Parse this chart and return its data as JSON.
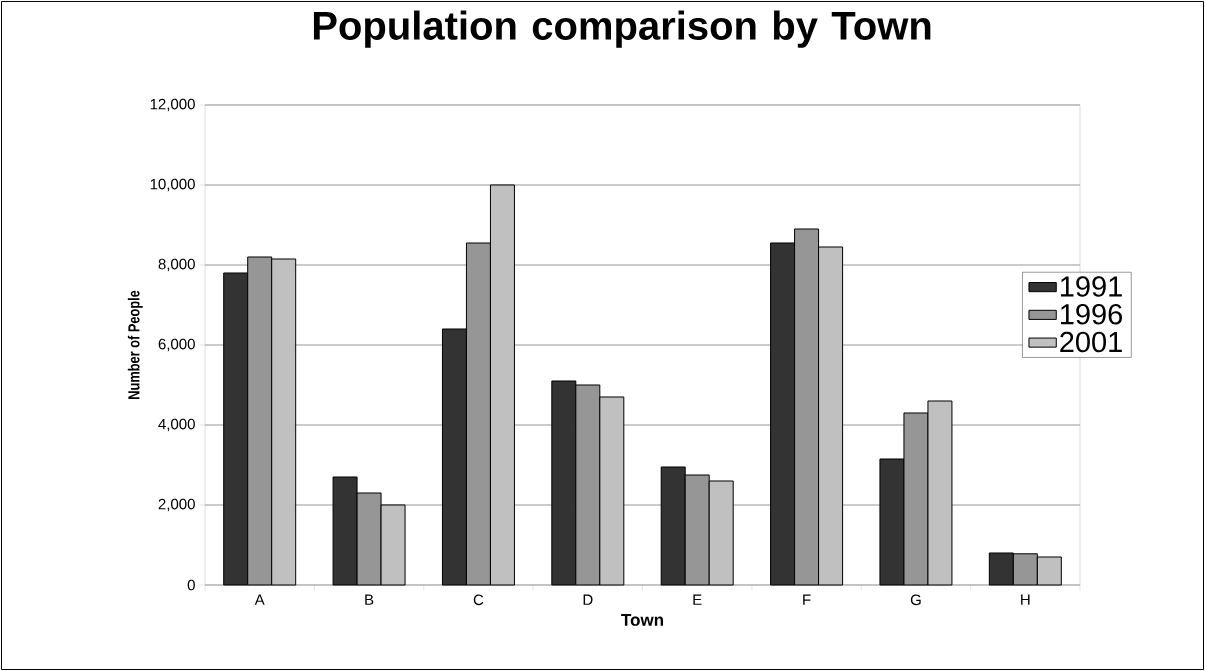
{
  "chart_data": {
    "type": "bar",
    "title": "Population comparison by Town",
    "xlabel": "Town",
    "ylabel": "Number of People",
    "categories": [
      "A",
      "B",
      "C",
      "D",
      "E",
      "F",
      "G",
      "H"
    ],
    "series": [
      {
        "name": "1991",
        "color": "#333333",
        "values": [
          7800,
          2700,
          6400,
          5100,
          2950,
          8550,
          3150,
          800
        ]
      },
      {
        "name": "1996",
        "color": "#969696",
        "values": [
          8200,
          2300,
          8550,
          5000,
          2750,
          8900,
          4300,
          780
        ]
      },
      {
        "name": "2001",
        "color": "#c0c0c0",
        "values": [
          8150,
          2000,
          10000,
          4700,
          2600,
          8450,
          4600,
          700
        ]
      }
    ],
    "ylim": [
      0,
      12000
    ],
    "yticks": [
      0,
      {
        "value": 2000,
        "label": "2,000"
      },
      {
        "value": 4000,
        "label": "4,000"
      },
      {
        "value": 6000,
        "label": "6,000"
      },
      {
        "value": 8000,
        "label": "8,000"
      },
      {
        "value": 10000,
        "label": "10,000"
      },
      {
        "value": 12000,
        "label": "12,000"
      }
    ],
    "grid": "y",
    "legend": "right"
  }
}
